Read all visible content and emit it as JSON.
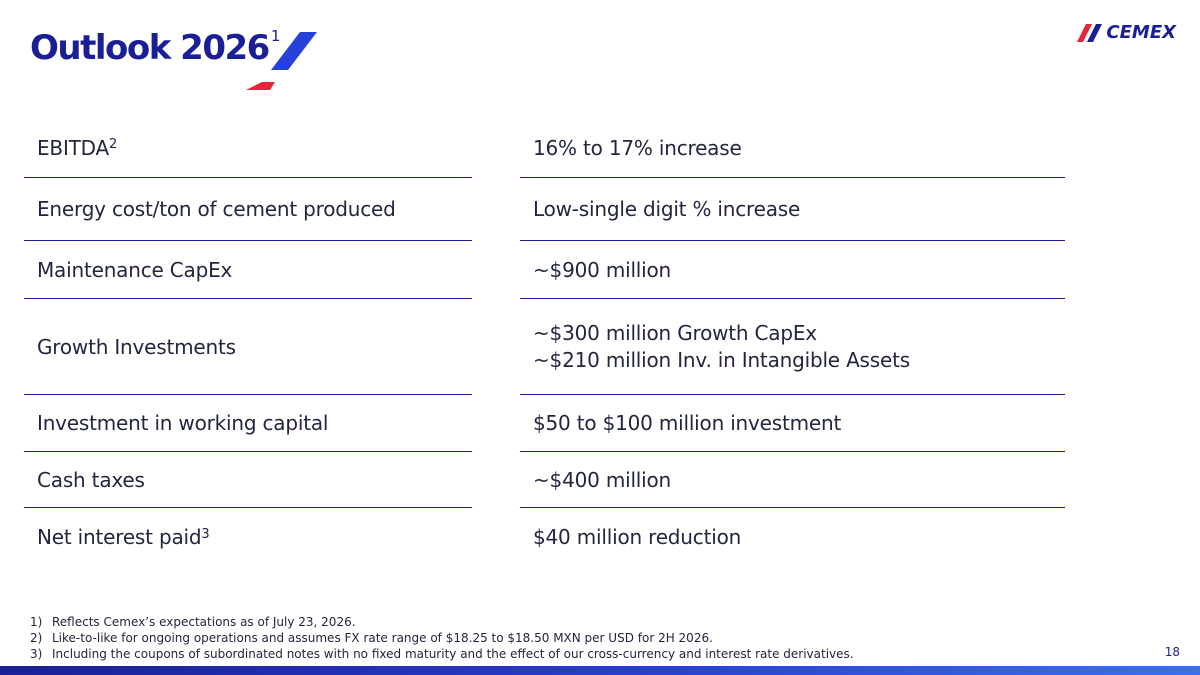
{
  "header": {
    "title": "Outlook 2026",
    "title_footnote": "1",
    "logo_text": "CEMEX"
  },
  "colors": {
    "brand_blue": "#1a1f96",
    "accent_red": "#e5243b",
    "accent_blue": "#2541d9"
  },
  "table": {
    "rows": [
      {
        "label": "EBITDA",
        "label_sup": "2",
        "value": "16% to 17% increase"
      },
      {
        "label": "Energy cost/ton of cement produced",
        "value": "Low-single digit % increase"
      },
      {
        "label": "Maintenance CapEx",
        "value": "~$900 million"
      },
      {
        "label": "Growth Investments",
        "value_lines": [
          "~$300 million Growth CapEx",
          "~$210 million Inv. in Intangible Assets"
        ]
      },
      {
        "label": "Investment in working capital",
        "value": "$50 to $100 million investment"
      },
      {
        "label": "Cash taxes",
        "value": "~$400 million"
      },
      {
        "label": "Net interest paid",
        "label_sup": "3",
        "value": "$40 million reduction"
      }
    ]
  },
  "footnotes": [
    {
      "num": "1)",
      "text": "Reflects Cemex’s expectations as of July 23, 2026."
    },
    {
      "num": "2)",
      "text": "Like-to-like for ongoing operations and assumes FX rate range of $18.25 to $18.50 MXN per USD for 2H 2026."
    },
    {
      "num": "3)",
      "text": "Including the coupons of subordinated notes with no fixed maturity and the effect of our cross-currency and interest rate derivatives."
    }
  ],
  "page_number": "18"
}
